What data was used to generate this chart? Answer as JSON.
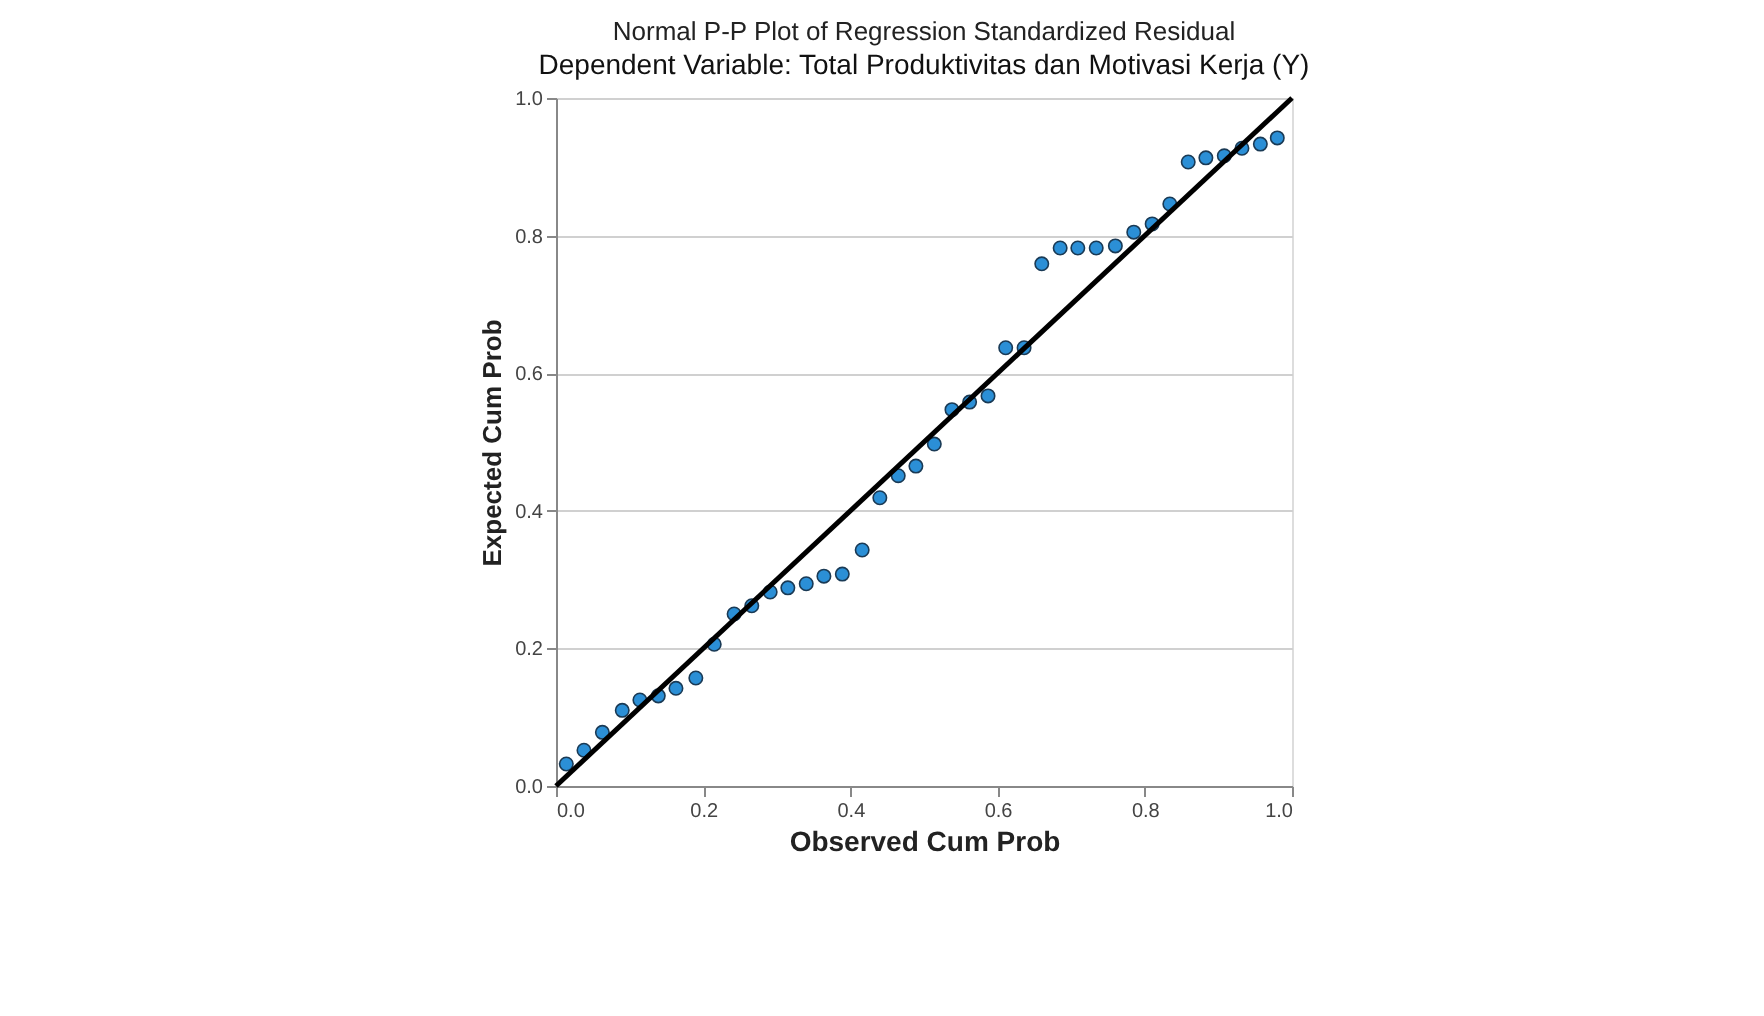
{
  "chart_data": {
    "type": "scatter",
    "title": "Normal P-P Plot of Regression Standardized Residual",
    "subtitle": "Dependent Variable: Total Produktivitas dan Motivasi Kerja (Y)",
    "xlabel": "Observed Cum Prob",
    "ylabel": "Expected Cum Prob",
    "xlim": [
      0,
      1
    ],
    "ylim": [
      0,
      1
    ],
    "xticks": [
      {
        "value": 0,
        "label": "0.0"
      },
      0.2,
      0.4,
      0.6,
      0.8,
      {
        "value": 1,
        "label": "1.0"
      }
    ],
    "yticks": [
      {
        "value": 0,
        "label": "0.0"
      },
      0.2,
      0.4,
      0.6,
      0.8,
      {
        "value": 1,
        "label": "1.0"
      }
    ],
    "grid": "y",
    "series": [
      {
        "marker": "circle",
        "color": "#2b8fd6",
        "x": [
          0.014,
          0.038,
          0.063,
          0.09,
          0.114,
          0.139,
          0.163,
          0.19,
          0.215,
          0.242,
          0.266,
          0.291,
          0.315,
          0.34,
          0.364,
          0.389,
          0.416,
          0.44,
          0.465,
          0.489,
          0.514,
          0.538,
          0.562,
          0.587,
          0.611,
          0.636,
          0.66,
          0.685,
          0.709,
          0.734,
          0.76,
          0.785,
          0.81,
          0.834,
          0.859,
          0.883,
          0.908,
          0.932,
          0.957,
          0.98
        ],
        "values": [
          0.032,
          0.052,
          0.078,
          0.11,
          0.125,
          0.131,
          0.142,
          0.157,
          0.206,
          0.25,
          0.262,
          0.282,
          0.288,
          0.294,
          0.305,
          0.308,
          0.343,
          0.419,
          0.451,
          0.465,
          0.497,
          0.547,
          0.558,
          0.567,
          0.637,
          0.637,
          0.759,
          0.782,
          0.782,
          0.782,
          0.785,
          0.805,
          0.817,
          0.846,
          0.907,
          0.913,
          0.916,
          0.927,
          0.933,
          0.942
        ]
      },
      {
        "type": "line",
        "marker": "none",
        "color": "#000000",
        "x": [
          0,
          1
        ],
        "values": [
          0,
          1
        ]
      }
    ]
  }
}
